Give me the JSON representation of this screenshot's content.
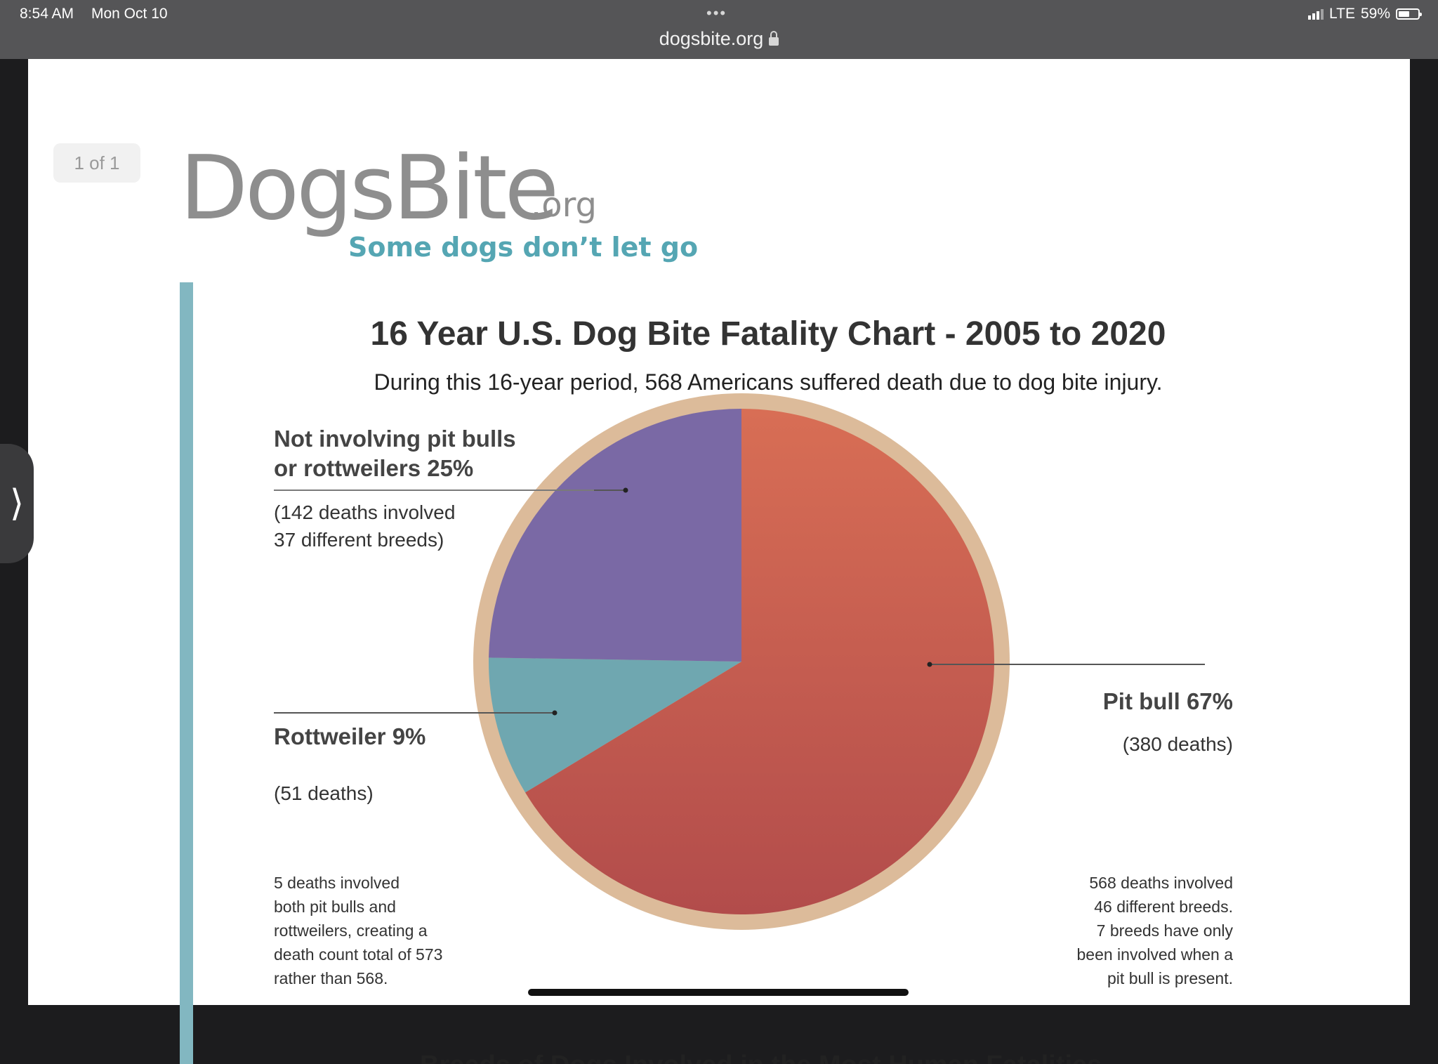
{
  "status_bar": {
    "time": "8:54 AM",
    "date": "Mon Oct 10",
    "network": "LTE",
    "battery": "59%",
    "battery_level": 0.59,
    "url": "dogsbite.org"
  },
  "viewer": {
    "page_indicator": "1 of 1",
    "side_handle": "⟩"
  },
  "logo": {
    "name": "DogsBite",
    "domain": ".org",
    "tagline": "Some dogs don’t let go"
  },
  "chart_data": {
    "type": "pie",
    "title": "16 Year U.S. Dog Bite Fatality Chart - 2005 to 2020",
    "subtitle": "During this 16-year period, 568 Americans suffered death due to dog bite injury.",
    "slices": [
      {
        "label": "Pit bull 67%",
        "percent": 67,
        "deaths": 380,
        "detail": "(380 deaths)",
        "color": "#c85a4e"
      },
      {
        "label": "Rottweiler 9%",
        "percent": 9,
        "deaths": 51,
        "detail": "(51 deaths)",
        "color": "#6fa7b0"
      },
      {
        "label": "Not involving pit bulls or rottweilers 25%",
        "label_lines": [
          "Not involving pit bulls",
          "or rottweilers 25%"
        ],
        "percent": 25,
        "deaths": 142,
        "detail_lines": [
          "(142 deaths involved",
          "37 different breeds)"
        ],
        "color": "#7a69a5"
      }
    ],
    "ring_color": "#dcbb9a",
    "notes": {
      "left": [
        "5 deaths involved",
        "both pit bulls and",
        "rottweilers, creating a",
        "death count total of 573",
        "rather than 568."
      ],
      "right": [
        "568 deaths involved",
        "46 different breeds.",
        "7 breeds have only",
        "been involved when a",
        "pit bull is present."
      ]
    }
  },
  "next_section_heading": "Breeds of Dogs Involved in the Most Human Fatalities"
}
